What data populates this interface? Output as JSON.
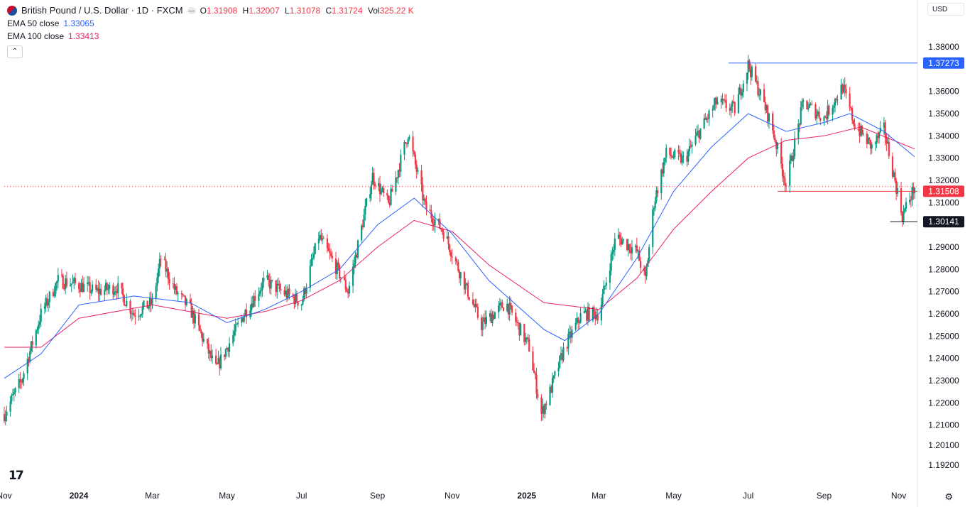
{
  "legend": {
    "symbol": "British Pound / U.S. Dollar · 1D · FXCM",
    "o_label": "O",
    "o_value": "1.31908",
    "h_label": "H",
    "h_value": "1.32007",
    "l_label": "L",
    "l_value": "1.31078",
    "c_label": "C",
    "c_value": "1.31724",
    "vol_label": "Vol",
    "vol_value": "325.22 K",
    "ema50_label": "EMA 50 close",
    "ema50_value": "1.33065",
    "ema100_label": "EMA 100 close",
    "ema100_value": "1.33413",
    "collapse_icon": "chevron-up-icon"
  },
  "currency": "USD",
  "brand_logo": "tradingview-logo-icon",
  "settings_icon": "gear-icon",
  "colors": {
    "up": "#089981",
    "down": "#f23645",
    "ema50": "#2962ff",
    "ema100": "#e91e63",
    "resistance": "#2962ff",
    "support": "#f23645",
    "low": "#131722",
    "current": "#f23645"
  },
  "chart_data": {
    "type": "candlestick",
    "y_axis_ticks": [
      "1.38000",
      "1.36000",
      "1.35000",
      "1.34000",
      "1.33000",
      "1.32000",
      "1.31000",
      "1.29000",
      "1.28000",
      "1.27000",
      "1.26000",
      "1.25000",
      "1.24000",
      "1.23000",
      "1.22000",
      "1.21000",
      "1.20100",
      "1.19200"
    ],
    "x_axis_labels": [
      {
        "label": "Nov",
        "bold": false,
        "date": "2023-11"
      },
      {
        "label": "2024",
        "bold": true,
        "date": "2024-01"
      },
      {
        "label": "Mar",
        "bold": false,
        "date": "2024-03"
      },
      {
        "label": "May",
        "bold": false,
        "date": "2024-05"
      },
      {
        "label": "Jul",
        "bold": false,
        "date": "2024-07"
      },
      {
        "label": "Sep",
        "bold": false,
        "date": "2024-09"
      },
      {
        "label": "Nov",
        "bold": false,
        "date": "2024-11"
      },
      {
        "label": "2025",
        "bold": true,
        "date": "2025-01"
      },
      {
        "label": "Mar",
        "bold": false,
        "date": "2025-03"
      },
      {
        "label": "May",
        "bold": false,
        "date": "2025-05"
      },
      {
        "label": "Jul",
        "bold": false,
        "date": "2025-07"
      },
      {
        "label": "Sep",
        "bold": false,
        "date": "2025-09"
      },
      {
        "label": "Nov",
        "bold": false,
        "date": "2025-11"
      }
    ],
    "price_path": [
      [
        "2023-11-01",
        1.215
      ],
      [
        "2023-11-15",
        1.23
      ],
      [
        "2023-12-01",
        1.26
      ],
      [
        "2023-12-15",
        1.275
      ],
      [
        "2024-01-01",
        1.273
      ],
      [
        "2024-01-15",
        1.27
      ],
      [
        "2024-02-01",
        1.272
      ],
      [
        "2024-02-15",
        1.26
      ],
      [
        "2024-03-01",
        1.265
      ],
      [
        "2024-03-08",
        1.285
      ],
      [
        "2024-03-20",
        1.27
      ],
      [
        "2024-04-01",
        1.262
      ],
      [
        "2024-04-22",
        1.235
      ],
      [
        "2024-05-15",
        1.26
      ],
      [
        "2024-06-01",
        1.275
      ],
      [
        "2024-06-15",
        1.27
      ],
      [
        "2024-07-01",
        1.265
      ],
      [
        "2024-07-15",
        1.295
      ],
      [
        "2024-08-01",
        1.278
      ],
      [
        "2024-08-08",
        1.27
      ],
      [
        "2024-08-28",
        1.322
      ],
      [
        "2024-09-10",
        1.309
      ],
      [
        "2024-09-26",
        1.341
      ],
      [
        "2024-10-10",
        1.308
      ],
      [
        "2024-10-25",
        1.297
      ],
      [
        "2024-11-10",
        1.275
      ],
      [
        "2024-11-25",
        1.255
      ],
      [
        "2024-12-15",
        1.265
      ],
      [
        "2025-01-03",
        1.245
      ],
      [
        "2025-01-13",
        1.215
      ],
      [
        "2025-01-20",
        1.225
      ],
      [
        "2025-02-01",
        1.245
      ],
      [
        "2025-02-15",
        1.26
      ],
      [
        "2025-03-01",
        1.26
      ],
      [
        "2025-03-15",
        1.295
      ],
      [
        "2025-04-01",
        1.288
      ],
      [
        "2025-04-08",
        1.275
      ],
      [
        "2025-04-15",
        1.31
      ],
      [
        "2025-04-25",
        1.332
      ],
      [
        "2025-05-10",
        1.329
      ],
      [
        "2025-05-20",
        1.34
      ],
      [
        "2025-06-05",
        1.355
      ],
      [
        "2025-06-20",
        1.352
      ],
      [
        "2025-07-01",
        1.372
      ],
      [
        "2025-07-10",
        1.36
      ],
      [
        "2025-07-20",
        1.345
      ],
      [
        "2025-08-01",
        1.318
      ],
      [
        "2025-08-15",
        1.355
      ],
      [
        "2025-09-01",
        1.348
      ],
      [
        "2025-09-16",
        1.362
      ],
      [
        "2025-09-26",
        1.345
      ],
      [
        "2025-10-10",
        1.335
      ],
      [
        "2025-10-20",
        1.343
      ],
      [
        "2025-11-04",
        1.304
      ],
      [
        "2025-11-14",
        1.3172
      ]
    ],
    "ema50_path": [
      [
        "2023-11-01",
        1.231
      ],
      [
        "2023-12-01",
        1.242
      ],
      [
        "2024-01-01",
        1.264
      ],
      [
        "2024-02-15",
        1.268
      ],
      [
        "2024-04-01",
        1.265
      ],
      [
        "2024-05-01",
        1.256
      ],
      [
        "2024-06-01",
        1.262
      ],
      [
        "2024-07-01",
        1.27
      ],
      [
        "2024-08-01",
        1.28
      ],
      [
        "2024-09-01",
        1.3
      ],
      [
        "2024-10-01",
        1.312
      ],
      [
        "2024-11-01",
        1.296
      ],
      [
        "2024-12-01",
        1.275
      ],
      [
        "2025-01-15",
        1.253
      ],
      [
        "2025-02-01",
        1.248
      ],
      [
        "2025-03-01",
        1.26
      ],
      [
        "2025-04-01",
        1.285
      ],
      [
        "2025-05-01",
        1.315
      ],
      [
        "2025-06-01",
        1.335
      ],
      [
        "2025-07-01",
        1.35
      ],
      [
        "2025-08-01",
        1.342
      ],
      [
        "2025-09-01",
        1.346
      ],
      [
        "2025-09-22",
        1.35
      ],
      [
        "2025-10-20",
        1.342
      ],
      [
        "2025-11-14",
        1.3306
      ]
    ],
    "ema100_path": [
      [
        "2023-11-01",
        1.245
      ],
      [
        "2023-12-01",
        1.245
      ],
      [
        "2024-01-01",
        1.258
      ],
      [
        "2024-03-01",
        1.264
      ],
      [
        "2024-05-01",
        1.258
      ],
      [
        "2024-06-01",
        1.261
      ],
      [
        "2024-07-01",
        1.266
      ],
      [
        "2024-08-01",
        1.275
      ],
      [
        "2024-09-01",
        1.29
      ],
      [
        "2024-10-01",
        1.302
      ],
      [
        "2024-11-01",
        1.297
      ],
      [
        "2024-12-01",
        1.282
      ],
      [
        "2025-01-15",
        1.265
      ],
      [
        "2025-03-01",
        1.262
      ],
      [
        "2025-04-01",
        1.276
      ],
      [
        "2025-05-01",
        1.298
      ],
      [
        "2025-06-01",
        1.315
      ],
      [
        "2025-07-01",
        1.33
      ],
      [
        "2025-08-01",
        1.338
      ],
      [
        "2025-09-01",
        1.34
      ],
      [
        "2025-10-01",
        1.344
      ],
      [
        "2025-11-14",
        1.3341
      ]
    ],
    "horizontal_lines": [
      {
        "name": "resistance-line",
        "value": 1.37273,
        "label": "1.37273",
        "from": "2025-06-15",
        "color": "#2962ff",
        "style": "solid"
      },
      {
        "name": "support-line",
        "value": 1.31508,
        "label": "1.31508",
        "from": "2025-07-25",
        "color": "#f23645",
        "style": "solid"
      },
      {
        "name": "recent-low-line",
        "value": 1.30141,
        "label": "1.30141",
        "from": "2025-10-25",
        "color": "#131722",
        "style": "solid"
      },
      {
        "name": "current-price-line",
        "value": 1.31724,
        "label": "",
        "from": "2023-11-01",
        "color": "#f23645",
        "style": "dotted"
      }
    ],
    "legend": [
      "EMA 50 close",
      "EMA 100 close"
    ],
    "grid": false
  }
}
